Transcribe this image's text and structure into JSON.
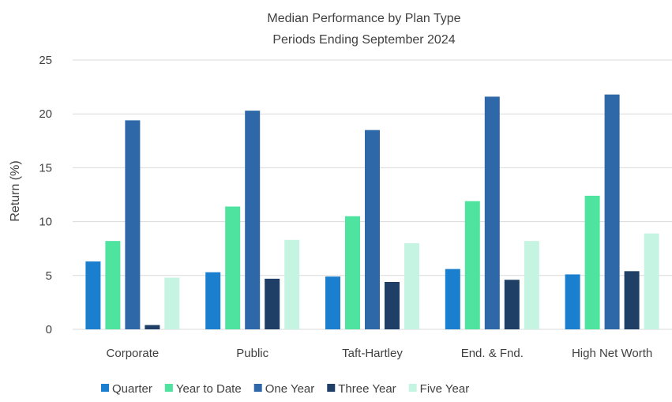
{
  "chart_data": {
    "type": "bar",
    "title": "Median Performance by Plan Type",
    "subtitle": "Periods Ending September 2024",
    "xlabel": "",
    "ylabel": "Return (%)",
    "ylim": [
      0,
      25
    ],
    "yticks": [
      0,
      5,
      10,
      15,
      20,
      25
    ],
    "grid": true,
    "legend_position": "bottom",
    "categories": [
      "Corporate",
      "Public",
      "Taft-Hartley",
      "End. & Fnd.",
      "High Net Worth"
    ],
    "series": [
      {
        "name": "Quarter",
        "color": "#1a7fcf",
        "values": [
          6.3,
          5.3,
          4.9,
          5.6,
          5.1
        ]
      },
      {
        "name": "Year to Date",
        "color": "#4fe3a0",
        "values": [
          8.2,
          11.4,
          10.5,
          11.9,
          12.4
        ]
      },
      {
        "name": "One Year",
        "color": "#2f68a8",
        "values": [
          19.4,
          20.3,
          18.5,
          21.6,
          21.8
        ]
      },
      {
        "name": "Three Year",
        "color": "#1f3f66",
        "values": [
          0.4,
          4.7,
          4.4,
          4.6,
          5.4
        ]
      },
      {
        "name": "Five Year",
        "color": "#c5f4e2",
        "values": [
          4.8,
          8.3,
          8.0,
          8.2,
          8.9
        ]
      }
    ]
  }
}
